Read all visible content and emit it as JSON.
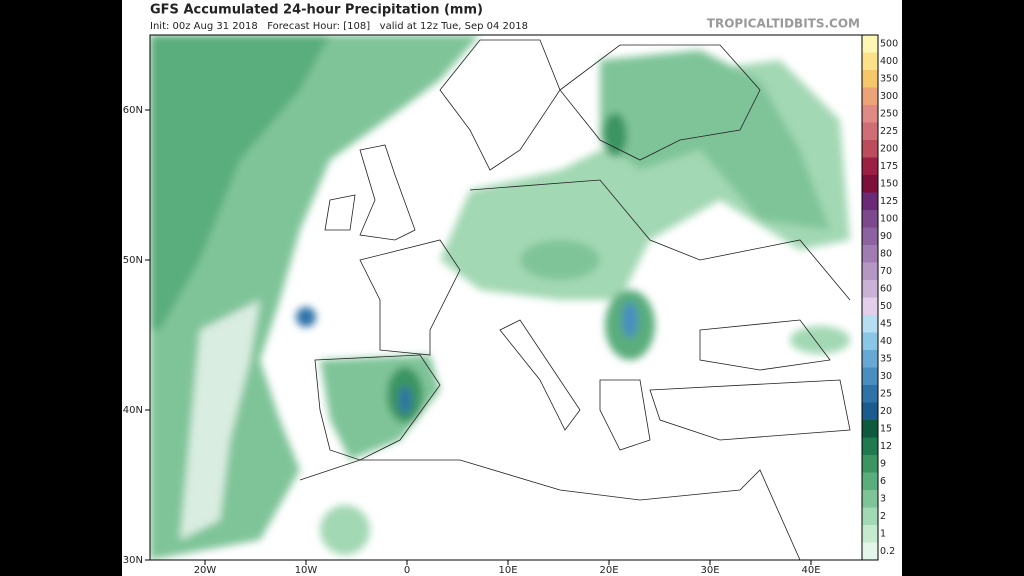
{
  "header": {
    "title": "GFS Accumulated 24-hour Precipitation (mm)",
    "subtitle": "Init: 00z Aug 31 2018   Forecast Hour: [108]   valid at 12z Tue, Sep 04 2018",
    "watermark": "TROPICALTIDBITS.COM"
  },
  "map": {
    "latitude_labels": [
      "60N",
      "50N",
      "40N",
      "30N"
    ],
    "longitude_labels": [
      "20W",
      "10W",
      "0",
      "10E",
      "20E",
      "30E",
      "40E"
    ]
  },
  "colorbar": {
    "levels": [
      {
        "label": "500",
        "color": "#fdf6b4"
      },
      {
        "label": "400",
        "color": "#fbe28a"
      },
      {
        "label": "350",
        "color": "#f6c66a"
      },
      {
        "label": "300",
        "color": "#eda27a"
      },
      {
        "label": "250",
        "color": "#e08a86"
      },
      {
        "label": "225",
        "color": "#d06e78"
      },
      {
        "label": "200",
        "color": "#bb4c5e"
      },
      {
        "label": "175",
        "color": "#9c1f44"
      },
      {
        "label": "150",
        "color": "#7d0f3a"
      },
      {
        "label": "125",
        "color": "#6b2a76"
      },
      {
        "label": "100",
        "color": "#7c4a8c"
      },
      {
        "label": "90",
        "color": "#8d62a0"
      },
      {
        "label": "80",
        "color": "#a07cb2"
      },
      {
        "label": "70",
        "color": "#b597c4"
      },
      {
        "label": "60",
        "color": "#cab2d6"
      },
      {
        "label": "50",
        "color": "#e2d0ea"
      },
      {
        "label": "45",
        "color": "#b6def2"
      },
      {
        "label": "40",
        "color": "#8cc6e6"
      },
      {
        "label": "35",
        "color": "#68a9d3"
      },
      {
        "label": "30",
        "color": "#4a8ec0"
      },
      {
        "label": "25",
        "color": "#2e72a8"
      },
      {
        "label": "20",
        "color": "#1b5b8e"
      },
      {
        "label": "15",
        "color": "#0e5a3e"
      },
      {
        "label": "12",
        "color": "#1f7a4f"
      },
      {
        "label": "9",
        "color": "#3b9462"
      },
      {
        "label": "6",
        "color": "#5aad7c"
      },
      {
        "label": "3",
        "color": "#7fc499"
      },
      {
        "label": "2",
        "color": "#a3d8b4"
      },
      {
        "label": "1",
        "color": "#c6ead0"
      },
      {
        "label": "0.2",
        "color": "#e4f6ea"
      }
    ]
  }
}
